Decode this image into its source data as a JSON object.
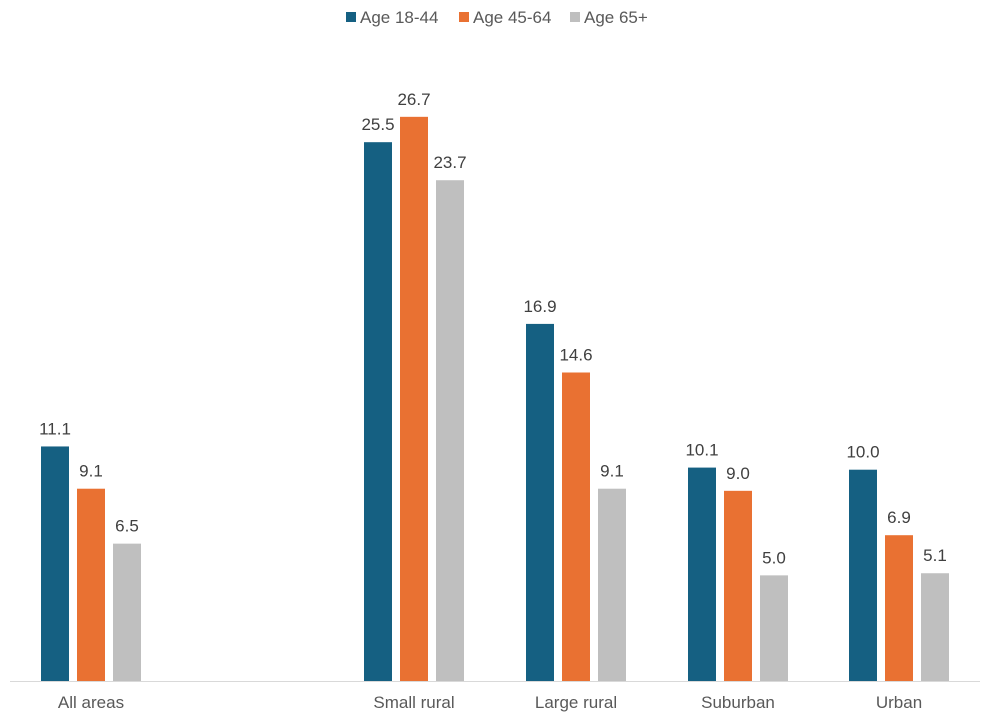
{
  "chart_data": {
    "type": "bar",
    "categories": [
      "All areas",
      "",
      "Small rural",
      "Large rural",
      "Suburban",
      "Urban"
    ],
    "series": [
      {
        "name": "Age 18-44",
        "color": "#156082",
        "values": [
          11.1,
          null,
          25.5,
          16.9,
          10.1,
          10.0
        ],
        "labels": [
          "11.1",
          "",
          "25.5",
          "16.9",
          "10.1",
          "10.0"
        ]
      },
      {
        "name": "Age 45-64",
        "color": "#E97132",
        "values": [
          9.1,
          null,
          26.7,
          14.6,
          9.0,
          6.9
        ],
        "labels": [
          "9.1",
          "",
          "26.7",
          "14.6",
          "9.0",
          "6.9"
        ]
      },
      {
        "name": "Age 65+",
        "color": "#BFBFBF",
        "values": [
          6.5,
          null,
          23.7,
          9.1,
          5.0,
          5.1
        ],
        "labels": [
          "6.5",
          "",
          "23.7",
          "9.1",
          "5.0",
          "5.1"
        ]
      }
    ],
    "title": "",
    "xlabel": "",
    "ylabel": "",
    "ylim": [
      0,
      30
    ],
    "legend": "top-center",
    "grid": false
  }
}
